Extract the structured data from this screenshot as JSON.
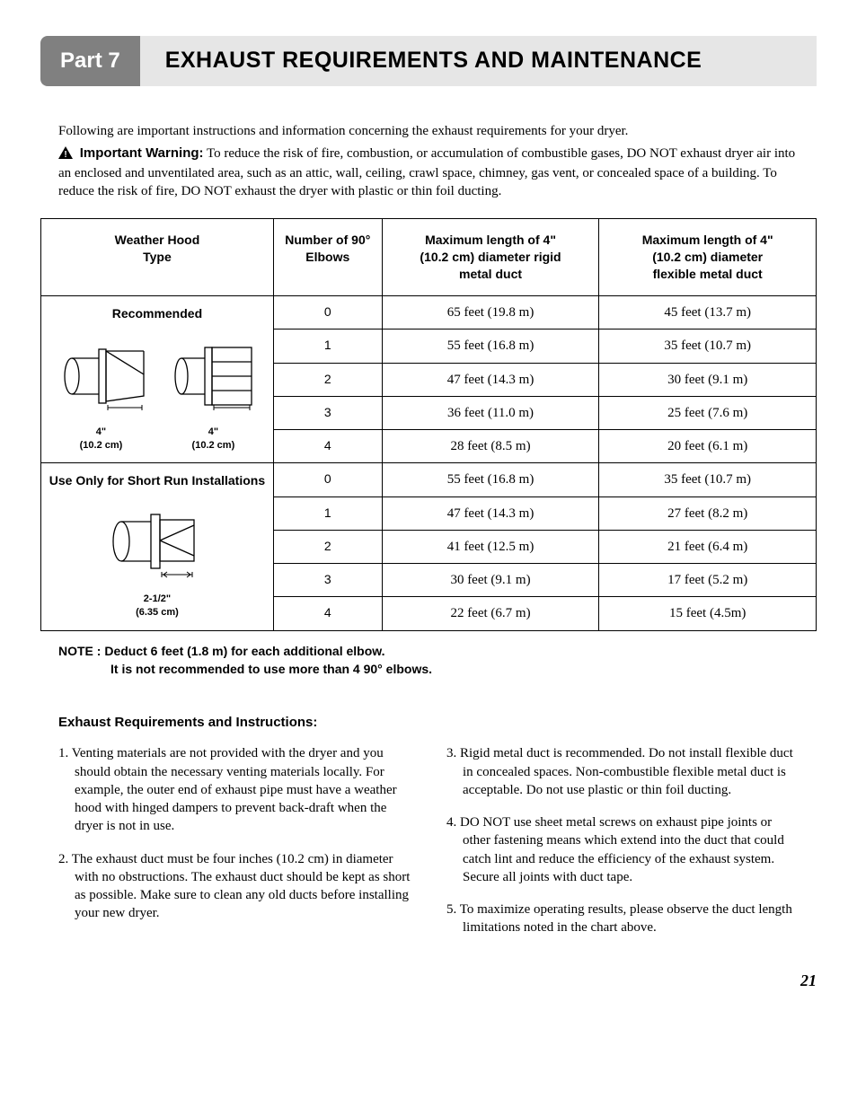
{
  "header": {
    "part_label": "Part 7",
    "title": "EXHAUST REQUIREMENTS AND MAINTENANCE"
  },
  "intro": {
    "line1": "Following are important instructions and information concerning the exhaust requirements for your dryer.",
    "warning_label": "Important Warning:",
    "warning_body": "To reduce the risk of fire, combustion, or accumulation of combustible gases, DO NOT exhaust dryer air into an enclosed and unventilated area, such as an attic, wall, ceiling, crawl space, chimney, gas vent, or concealed space of a building.  To reduce the risk of fire, DO NOT exhaust the dryer with plastic or thin foil ducting."
  },
  "table": {
    "columns": [
      "Weather Hood Type",
      "Number of 90° Elbows",
      "Maximum length of 4\" (10.2 cm) diameter rigid metal duct",
      "Maximum length of 4\" (10.2 cm) diameter flexible metal duct"
    ],
    "sections": [
      {
        "title": "Recommended",
        "hood_dim1": "4\"",
        "hood_dim1_metric": "(10.2 cm)",
        "hood_dim2": "4\"",
        "hood_dim2_metric": "(10.2 cm)",
        "rows": [
          {
            "elbows": "0",
            "rigid": "65 feet (19.8 m)",
            "flex": "45 feet (13.7 m)"
          },
          {
            "elbows": "1",
            "rigid": "55 feet (16.8 m)",
            "flex": "35 feet (10.7 m)"
          },
          {
            "elbows": "2",
            "rigid": "47 feet (14.3 m)",
            "flex": "30 feet (9.1 m)"
          },
          {
            "elbows": "3",
            "rigid": "36 feet (11.0 m)",
            "flex": "25 feet (7.6 m)"
          },
          {
            "elbows": "4",
            "rigid": "28 feet (8.5 m)",
            "flex": "20 feet (6.1 m)"
          }
        ]
      },
      {
        "title": "Use Only for Short Run Installations",
        "hood_dim1": "2-1/2\"",
        "hood_dim1_metric": "(6.35 cm)",
        "rows": [
          {
            "elbows": "0",
            "rigid": "55 feet (16.8 m)",
            "flex": "35 feet (10.7 m)"
          },
          {
            "elbows": "1",
            "rigid": "47 feet (14.3 m)",
            "flex": "27 feet (8.2 m)"
          },
          {
            "elbows": "2",
            "rigid": "41 feet (12.5 m)",
            "flex": "21 feet (6.4 m)"
          },
          {
            "elbows": "3",
            "rigid": "30 feet (9.1 m)",
            "flex": "17 feet (5.2 m)"
          },
          {
            "elbows": "4",
            "rigid": "22 feet (6.7 m)",
            "flex": "15 feet (4.5m)"
          }
        ]
      }
    ]
  },
  "note": {
    "line1": "NOTE : Deduct 6 feet (1.8 m) for each additional elbow.",
    "line2": "It is not recommended to use more than 4 90° elbows."
  },
  "instructions": {
    "heading": "Exhaust Requirements and Instructions:",
    "left": [
      "Venting materials are not provided with the dryer and you should obtain the necessary venting materials locally.  For example, the outer end of exhaust pipe must have a weather hood with hinged dampers to prevent back-draft when the dryer is not in use.",
      "The exhaust duct must be four inches (10.2 cm) in diameter with no obstructions.  The exhaust duct should be kept as short as possible. Make sure to clean any old ducts before installing your new dryer."
    ],
    "right": [
      "Rigid metal duct is recommended.  Do not install flexible duct in concealed spaces. Non-combustible flexible metal duct is acceptable. Do not use plastic or thin foil ducting.",
      "DO NOT use sheet metal screws on exhaust pipe joints or other fastening means which extend into the duct that could catch lint and reduce the efficiency of the exhaust system. Secure all joints with duct tape.",
      "To maximize operating results, please observe the duct length limitations noted in the chart above."
    ]
  },
  "page_number": "21",
  "colors": {
    "part_bg": "#808080",
    "title_bg": "#e6e6e6",
    "text": "#000000",
    "border": "#000000"
  }
}
